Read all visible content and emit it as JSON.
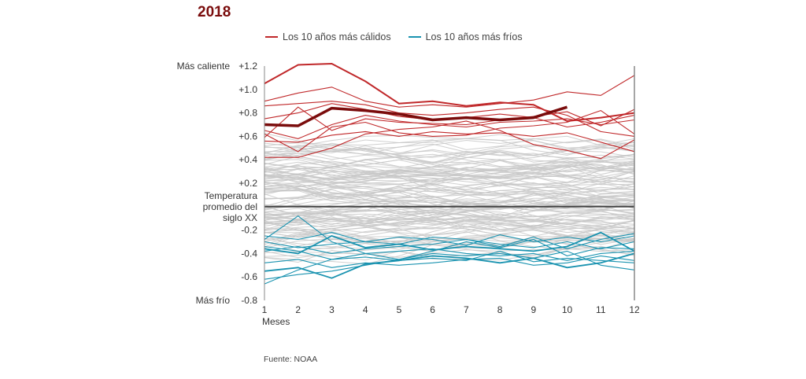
{
  "chart_data": {
    "type": "line",
    "title": "2018",
    "xlabel": "Meses",
    "ylabel_top": "Más caliente",
    "ylabel_bottom": "Más frío",
    "baseline_label": [
      "Temperatura",
      "promedio del",
      "siglo XX"
    ],
    "x": [
      1,
      2,
      3,
      4,
      5,
      6,
      7,
      8,
      9,
      10,
      11,
      12
    ],
    "ylim": [
      -0.8,
      1.2
    ],
    "yticks": [
      {
        "value": 1.2,
        "label": "+1.2"
      },
      {
        "value": 1.0,
        "label": "+1.0"
      },
      {
        "value": 0.8,
        "label": "+0.8"
      },
      {
        "value": 0.6,
        "label": "+0.6"
      },
      {
        "value": 0.4,
        "label": "+0.4"
      },
      {
        "value": 0.2,
        "label": "+0.2"
      },
      {
        "value": -0.2,
        "label": "-0.2"
      },
      {
        "value": -0.4,
        "label": "-0.4"
      },
      {
        "value": -0.6,
        "label": "-0.6"
      },
      {
        "value": -0.8,
        "label": "-0.8"
      }
    ],
    "legend": [
      {
        "name": "Los 10 años más cálidos",
        "color": "#c0282a"
      },
      {
        "name": "Los 10 años más fríos",
        "color": "#1a93b0"
      }
    ],
    "colors": {
      "highlight": "#7a0c0c",
      "warm": "#c0282a",
      "cold": "#1a93b0",
      "other": "#c8c8c8",
      "baseline": "#444444",
      "axis": "#888888"
    },
    "highlight": {
      "name": "2018",
      "values": [
        0.7,
        0.69,
        0.84,
        0.82,
        0.79,
        0.74,
        0.76,
        0.74,
        0.76,
        0.85
      ]
    },
    "warm_series": [
      {
        "values": [
          1.05,
          1.21,
          1.22,
          1.07,
          0.88,
          0.9,
          0.86,
          0.89,
          0.87,
          0.73,
          0.76,
          0.8
        ]
      },
      {
        "values": [
          0.9,
          0.97,
          1.02,
          0.9,
          0.85,
          0.87,
          0.85,
          0.88,
          0.91,
          0.98,
          0.95,
          1.12
        ]
      },
      {
        "values": [
          0.59,
          0.85,
          0.65,
          0.75,
          0.72,
          0.71,
          0.7,
          0.74,
          0.77,
          0.81,
          0.69,
          0.83
        ]
      },
      {
        "values": [
          0.42,
          0.42,
          0.5,
          0.62,
          0.66,
          0.68,
          0.73,
          0.65,
          0.53,
          0.48,
          0.41,
          0.57
        ]
      },
      {
        "values": [
          0.62,
          0.47,
          0.68,
          0.72,
          0.63,
          0.6,
          0.61,
          0.67,
          0.69,
          0.72,
          0.82,
          0.62
        ]
      },
      {
        "values": [
          0.65,
          0.58,
          0.7,
          0.78,
          0.73,
          0.7,
          0.68,
          0.72,
          0.73,
          0.75,
          0.7,
          0.74
        ]
      },
      {
        "values": [
          0.56,
          0.55,
          0.61,
          0.64,
          0.6,
          0.64,
          0.62,
          0.63,
          0.6,
          0.63,
          0.55,
          0.47
        ]
      },
      {
        "values": [
          0.75,
          0.8,
          0.88,
          0.83,
          0.77,
          0.74,
          0.76,
          0.79,
          0.76,
          0.68,
          0.72,
          0.78
        ]
      },
      {
        "values": [
          0.86,
          0.88,
          0.9,
          0.87,
          0.8,
          0.78,
          0.8,
          0.83,
          0.85,
          0.78,
          0.64,
          0.6
        ]
      }
    ],
    "cold_series": [
      {
        "values": [
          -0.55,
          -0.52,
          -0.61,
          -0.49,
          -0.46,
          -0.42,
          -0.44,
          -0.48,
          -0.44,
          -0.52,
          -0.48,
          -0.4
        ]
      },
      {
        "values": [
          -0.36,
          -0.4,
          -0.25,
          -0.35,
          -0.32,
          -0.37,
          -0.34,
          -0.36,
          -0.38,
          -0.34,
          -0.22,
          -0.38
        ]
      },
      {
        "values": [
          -0.62,
          -0.58,
          -0.55,
          -0.5,
          -0.45,
          -0.4,
          -0.42,
          -0.4,
          -0.44,
          -0.38,
          -0.5,
          -0.54
        ]
      },
      {
        "values": [
          -0.28,
          -0.08,
          -0.3,
          -0.4,
          -0.45,
          -0.38,
          -0.3,
          -0.35,
          -0.28,
          -0.42,
          -0.35,
          -0.36
        ]
      },
      {
        "values": [
          -0.34,
          -0.38,
          -0.45,
          -0.4,
          -0.38,
          -0.36,
          -0.4,
          -0.42,
          -0.4,
          -0.46,
          -0.4,
          -0.38
        ]
      },
      {
        "values": [
          -0.66,
          -0.54,
          -0.45,
          -0.43,
          -0.46,
          -0.44,
          -0.46,
          -0.38,
          -0.47,
          -0.44,
          -0.46,
          -0.48
        ]
      },
      {
        "values": [
          -0.3,
          -0.35,
          -0.32,
          -0.3,
          -0.26,
          -0.28,
          -0.33,
          -0.24,
          -0.3,
          -0.26,
          -0.3,
          -0.25
        ]
      },
      {
        "values": [
          -0.38,
          -0.34,
          -0.4,
          -0.36,
          -0.34,
          -0.32,
          -0.28,
          -0.32,
          -0.35,
          -0.3,
          -0.36,
          -0.3
        ]
      },
      {
        "values": [
          -0.48,
          -0.45,
          -0.52,
          -0.48,
          -0.5,
          -0.48,
          -0.45,
          -0.44,
          -0.5,
          -0.48,
          -0.42,
          -0.46
        ]
      },
      {
        "values": [
          -0.25,
          -0.28,
          -0.22,
          -0.3,
          -0.32,
          -0.26,
          -0.28,
          -0.34,
          -0.26,
          -0.36,
          -0.28,
          -0.23
        ]
      }
    ],
    "other_series_count": 118
  },
  "source": "Fuente: NOAA"
}
